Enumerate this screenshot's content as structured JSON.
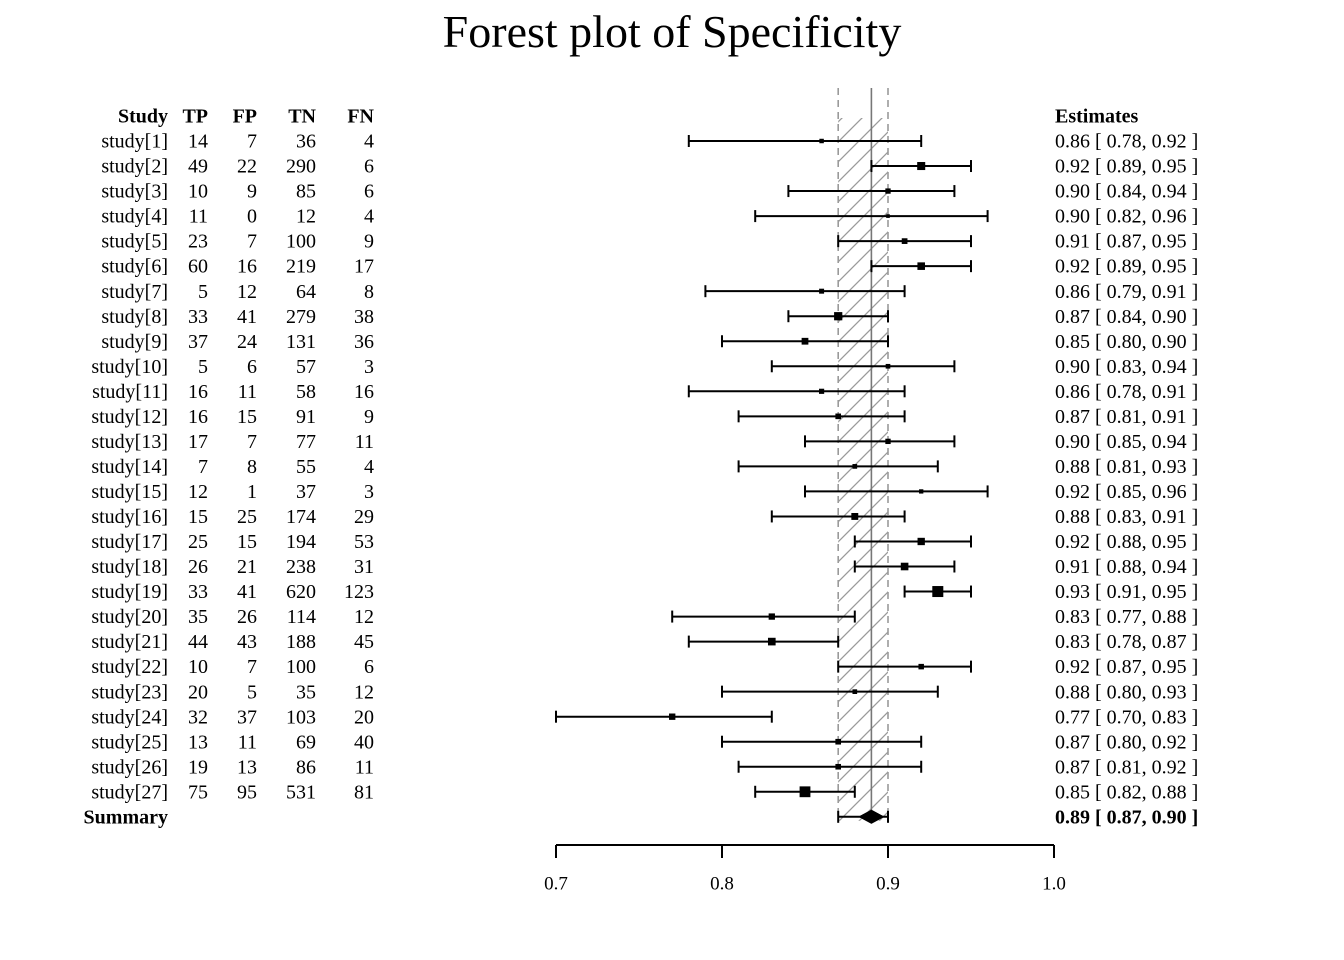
{
  "title": "Forest plot of Specificity",
  "chart_data": {
    "type": "forest",
    "title": "Forest plot of Specificity",
    "columns": [
      "Study",
      "TP",
      "FP",
      "TN",
      "FN"
    ],
    "estimates_header": "Estimates",
    "xlim": [
      0.7,
      1.0
    ],
    "xticks": [
      "0.7",
      "0.8",
      "0.9",
      "1.0"
    ],
    "studies": [
      {
        "name": "study[1]",
        "tp": "14",
        "fp": "7",
        "tn": "36",
        "fn": "4",
        "est": 0.86,
        "lo": 0.78,
        "hi": 0.92,
        "label": "0.86 [ 0.78, 0.92 ]"
      },
      {
        "name": "study[2]",
        "tp": "49",
        "fp": "22",
        "tn": "290",
        "fn": "6",
        "est": 0.92,
        "lo": 0.89,
        "hi": 0.95,
        "label": "0.92 [ 0.89, 0.95 ]"
      },
      {
        "name": "study[3]",
        "tp": "10",
        "fp": "9",
        "tn": "85",
        "fn": "6",
        "est": 0.9,
        "lo": 0.84,
        "hi": 0.94,
        "label": "0.90 [ 0.84, 0.94 ]"
      },
      {
        "name": "study[4]",
        "tp": "11",
        "fp": "0",
        "tn": "12",
        "fn": "4",
        "est": 0.9,
        "lo": 0.82,
        "hi": 0.96,
        "label": "0.90 [ 0.82, 0.96 ]"
      },
      {
        "name": "study[5]",
        "tp": "23",
        "fp": "7",
        "tn": "100",
        "fn": "9",
        "est": 0.91,
        "lo": 0.87,
        "hi": 0.95,
        "label": "0.91 [ 0.87, 0.95 ]"
      },
      {
        "name": "study[6]",
        "tp": "60",
        "fp": "16",
        "tn": "219",
        "fn": "17",
        "est": 0.92,
        "lo": 0.89,
        "hi": 0.95,
        "label": "0.92 [ 0.89, 0.95 ]"
      },
      {
        "name": "study[7]",
        "tp": "5",
        "fp": "12",
        "tn": "64",
        "fn": "8",
        "est": 0.86,
        "lo": 0.79,
        "hi": 0.91,
        "label": "0.86 [ 0.79, 0.91 ]"
      },
      {
        "name": "study[8]",
        "tp": "33",
        "fp": "41",
        "tn": "279",
        "fn": "38",
        "est": 0.87,
        "lo": 0.84,
        "hi": 0.9,
        "label": "0.87 [ 0.84, 0.90 ]"
      },
      {
        "name": "study[9]",
        "tp": "37",
        "fp": "24",
        "tn": "131",
        "fn": "36",
        "est": 0.85,
        "lo": 0.8,
        "hi": 0.9,
        "label": "0.85 [ 0.80, 0.90 ]"
      },
      {
        "name": "study[10]",
        "tp": "5",
        "fp": "6",
        "tn": "57",
        "fn": "3",
        "est": 0.9,
        "lo": 0.83,
        "hi": 0.94,
        "label": "0.90 [ 0.83, 0.94 ]"
      },
      {
        "name": "study[11]",
        "tp": "16",
        "fp": "11",
        "tn": "58",
        "fn": "16",
        "est": 0.86,
        "lo": 0.78,
        "hi": 0.91,
        "label": "0.86 [ 0.78, 0.91 ]"
      },
      {
        "name": "study[12]",
        "tp": "16",
        "fp": "15",
        "tn": "91",
        "fn": "9",
        "est": 0.87,
        "lo": 0.81,
        "hi": 0.91,
        "label": "0.87 [ 0.81, 0.91 ]"
      },
      {
        "name": "study[13]",
        "tp": "17",
        "fp": "7",
        "tn": "77",
        "fn": "11",
        "est": 0.9,
        "lo": 0.85,
        "hi": 0.94,
        "label": "0.90 [ 0.85, 0.94 ]"
      },
      {
        "name": "study[14]",
        "tp": "7",
        "fp": "8",
        "tn": "55",
        "fn": "4",
        "est": 0.88,
        "lo": 0.81,
        "hi": 0.93,
        "label": "0.88 [ 0.81, 0.93 ]"
      },
      {
        "name": "study[15]",
        "tp": "12",
        "fp": "1",
        "tn": "37",
        "fn": "3",
        "est": 0.92,
        "lo": 0.85,
        "hi": 0.96,
        "label": "0.92 [ 0.85, 0.96 ]"
      },
      {
        "name": "study[16]",
        "tp": "15",
        "fp": "25",
        "tn": "174",
        "fn": "29",
        "est": 0.88,
        "lo": 0.83,
        "hi": 0.91,
        "label": "0.88 [ 0.83, 0.91 ]"
      },
      {
        "name": "study[17]",
        "tp": "25",
        "fp": "15",
        "tn": "194",
        "fn": "53",
        "est": 0.92,
        "lo": 0.88,
        "hi": 0.95,
        "label": "0.92 [ 0.88, 0.95 ]"
      },
      {
        "name": "study[18]",
        "tp": "26",
        "fp": "21",
        "tn": "238",
        "fn": "31",
        "est": 0.91,
        "lo": 0.88,
        "hi": 0.94,
        "label": "0.91 [ 0.88, 0.94 ]"
      },
      {
        "name": "study[19]",
        "tp": "33",
        "fp": "41",
        "tn": "620",
        "fn": "123",
        "est": 0.93,
        "lo": 0.91,
        "hi": 0.95,
        "label": "0.93 [ 0.91, 0.95 ]"
      },
      {
        "name": "study[20]",
        "tp": "35",
        "fp": "26",
        "tn": "114",
        "fn": "12",
        "est": 0.83,
        "lo": 0.77,
        "hi": 0.88,
        "label": "0.83 [ 0.77, 0.88 ]"
      },
      {
        "name": "study[21]",
        "tp": "44",
        "fp": "43",
        "tn": "188",
        "fn": "45",
        "est": 0.83,
        "lo": 0.78,
        "hi": 0.87,
        "label": "0.83 [ 0.78, 0.87 ]"
      },
      {
        "name": "study[22]",
        "tp": "10",
        "fp": "7",
        "tn": "100",
        "fn": "6",
        "est": 0.92,
        "lo": 0.87,
        "hi": 0.95,
        "label": "0.92 [ 0.87, 0.95 ]"
      },
      {
        "name": "study[23]",
        "tp": "20",
        "fp": "5",
        "tn": "35",
        "fn": "12",
        "est": 0.88,
        "lo": 0.8,
        "hi": 0.93,
        "label": "0.88 [ 0.80, 0.93 ]"
      },
      {
        "name": "study[24]",
        "tp": "32",
        "fp": "37",
        "tn": "103",
        "fn": "20",
        "est": 0.77,
        "lo": 0.7,
        "hi": 0.83,
        "label": "0.77 [ 0.70, 0.83 ]"
      },
      {
        "name": "study[25]",
        "tp": "13",
        "fp": "11",
        "tn": "69",
        "fn": "40",
        "est": 0.87,
        "lo": 0.8,
        "hi": 0.92,
        "label": "0.87 [ 0.80, 0.92 ]"
      },
      {
        "name": "study[26]",
        "tp": "19",
        "fp": "13",
        "tn": "86",
        "fn": "11",
        "est": 0.87,
        "lo": 0.81,
        "hi": 0.92,
        "label": "0.87 [ 0.81, 0.92 ]"
      },
      {
        "name": "study[27]",
        "tp": "75",
        "fp": "95",
        "tn": "531",
        "fn": "81",
        "est": 0.85,
        "lo": 0.82,
        "hi": 0.88,
        "label": "0.85 [ 0.82, 0.88 ]"
      }
    ],
    "summary": {
      "name": "Summary",
      "est": 0.89,
      "lo": 0.87,
      "hi": 0.9,
      "label": "0.89 [ 0.87, 0.90 ]"
    },
    "colors": {
      "ink": "#000000",
      "band": "#9a9a9a",
      "ref_line": "#777777"
    }
  }
}
